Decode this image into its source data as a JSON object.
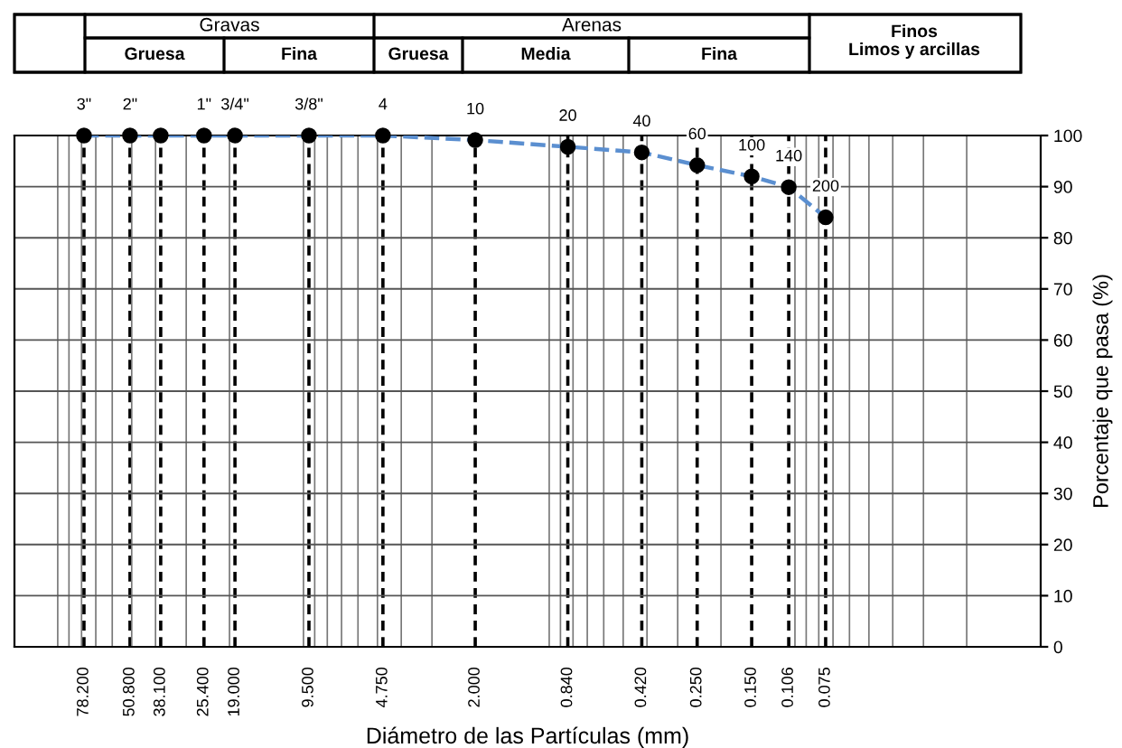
{
  "chart_data": {
    "type": "line",
    "xlabel": "Diámetro de las Partículas (mm)",
    "ylabel": "Porcentaje que pasa (%)",
    "annotations": [
      "Gravas",
      "Gruesa",
      "Fina",
      "Arenas",
      "Gruesa",
      "Media",
      "Fina",
      "Finos",
      "Limos y arcillas",
      {
        "text": "3\"",
        "x": 78.2,
        "y": 100
      },
      {
        "text": "2\"",
        "x": 50.8,
        "y": 100
      },
      {
        "text": "1\"",
        "x": 25.4,
        "y": 100
      },
      {
        "text": "3/4\"",
        "x": 19.0,
        "y": 100
      },
      {
        "text": "3/8\"",
        "x": 9.5,
        "y": 100
      },
      {
        "text": "4",
        "x": 4.75,
        "y": 100
      },
      {
        "text": "10",
        "x": 2.0,
        "y": 99.1
      },
      {
        "text": "20",
        "x": 0.84,
        "y": 97.8
      },
      {
        "text": "40",
        "x": 0.42,
        "y": 96.7
      },
      {
        "text": "60",
        "x": 0.25,
        "y": 94.2
      },
      {
        "text": "100",
        "x": 0.15,
        "y": 92
      },
      {
        "text": "140",
        "x": 0.106,
        "y": 89.9
      },
      {
        "text": "200",
        "x": 0.075,
        "y": 84
      }
    ],
    "x": [
      78.2,
      50.8,
      38.1,
      25.4,
      19.0,
      9.5,
      4.75,
      2.0,
      0.84,
      0.42,
      0.25,
      0.15,
      0.106,
      0.075
    ],
    "series": [
      {
        "color": "#5b8fd0",
        "line_style": "dashed",
        "marker": "none",
        "values": [
          100,
          100,
          100,
          100,
          100,
          100,
          100,
          99.1,
          97.8,
          96.7,
          94.2,
          92,
          89.9,
          84
        ]
      },
      {
        "type": "scatter",
        "color": "#000000",
        "marker": "circle",
        "values": [
          100,
          100,
          100,
          100,
          100,
          100,
          100,
          99.1,
          97.8,
          96.7,
          94.2,
          92,
          89.9,
          84
        ]
      }
    ],
    "log": "x",
    "xlim": [
      150,
      0.01
    ],
    "ylim": [
      0,
      100
    ],
    "xticks": [
      {
        "value": 78.2,
        "label": "78.200"
      },
      {
        "value": 50.8,
        "label": "50.800"
      },
      {
        "value": 38.1,
        "label": "38.100"
      },
      {
        "value": 25.4,
        "label": "25.400"
      },
      {
        "value": 19.0,
        "label": "19.000"
      },
      {
        "value": 9.5,
        "label": "9.500"
      },
      {
        "value": 4.75,
        "label": "4.750"
      },
      {
        "value": 2.0,
        "label": "2.000"
      },
      {
        "value": 0.84,
        "label": "0.840"
      },
      {
        "value": 0.42,
        "label": "0.420"
      },
      {
        "value": 0.25,
        "label": "0.250"
      },
      {
        "value": 0.15,
        "label": "0.150"
      },
      {
        "value": 0.106,
        "label": "0.106"
      },
      {
        "value": 0.075,
        "label": "0.075"
      }
    ],
    "yticks": [
      0,
      10,
      20,
      30,
      40,
      50,
      60,
      70,
      80,
      90,
      100
    ],
    "grid": true,
    "legend": false
  }
}
